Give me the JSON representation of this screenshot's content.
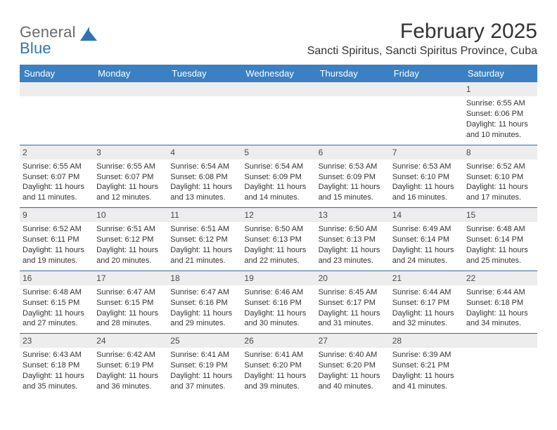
{
  "brand": {
    "line1": "General",
    "line2": "Blue"
  },
  "title": "February 2025",
  "subtitle": "Sancti Spiritus, Sancti Spiritus Province, Cuba",
  "colors": {
    "header_bg": "#3a80c2",
    "header_fg": "#ffffff",
    "row_divider": "#2b6aa8",
    "daynum_bg": "#ededed",
    "daynum_fg": "#4a4a4a",
    "text": "#333333",
    "logo_gray": "#6a6a6a",
    "logo_blue": "#2f75b5",
    "page_bg": "#ffffff"
  },
  "fonts": {
    "base": "Arial",
    "title_size": 30,
    "subtitle_size": 16,
    "dow_size": 13,
    "body_size": 11,
    "daynum_size": 12
  },
  "dow": [
    "Sunday",
    "Monday",
    "Tuesday",
    "Wednesday",
    "Thursday",
    "Friday",
    "Saturday"
  ],
  "weeks": [
    [
      {
        "day": "",
        "sunrise": "",
        "sunset": "",
        "daylight": ""
      },
      {
        "day": "",
        "sunrise": "",
        "sunset": "",
        "daylight": ""
      },
      {
        "day": "",
        "sunrise": "",
        "sunset": "",
        "daylight": ""
      },
      {
        "day": "",
        "sunrise": "",
        "sunset": "",
        "daylight": ""
      },
      {
        "day": "",
        "sunrise": "",
        "sunset": "",
        "daylight": ""
      },
      {
        "day": "",
        "sunrise": "",
        "sunset": "",
        "daylight": ""
      },
      {
        "day": "1",
        "sunrise": "Sunrise: 6:55 AM",
        "sunset": "Sunset: 6:06 PM",
        "daylight": "Daylight: 11 hours and 10 minutes."
      }
    ],
    [
      {
        "day": "2",
        "sunrise": "Sunrise: 6:55 AM",
        "sunset": "Sunset: 6:07 PM",
        "daylight": "Daylight: 11 hours and 11 minutes."
      },
      {
        "day": "3",
        "sunrise": "Sunrise: 6:55 AM",
        "sunset": "Sunset: 6:07 PM",
        "daylight": "Daylight: 11 hours and 12 minutes."
      },
      {
        "day": "4",
        "sunrise": "Sunrise: 6:54 AM",
        "sunset": "Sunset: 6:08 PM",
        "daylight": "Daylight: 11 hours and 13 minutes."
      },
      {
        "day": "5",
        "sunrise": "Sunrise: 6:54 AM",
        "sunset": "Sunset: 6:09 PM",
        "daylight": "Daylight: 11 hours and 14 minutes."
      },
      {
        "day": "6",
        "sunrise": "Sunrise: 6:53 AM",
        "sunset": "Sunset: 6:09 PM",
        "daylight": "Daylight: 11 hours and 15 minutes."
      },
      {
        "day": "7",
        "sunrise": "Sunrise: 6:53 AM",
        "sunset": "Sunset: 6:10 PM",
        "daylight": "Daylight: 11 hours and 16 minutes."
      },
      {
        "day": "8",
        "sunrise": "Sunrise: 6:52 AM",
        "sunset": "Sunset: 6:10 PM",
        "daylight": "Daylight: 11 hours and 17 minutes."
      }
    ],
    [
      {
        "day": "9",
        "sunrise": "Sunrise: 6:52 AM",
        "sunset": "Sunset: 6:11 PM",
        "daylight": "Daylight: 11 hours and 19 minutes."
      },
      {
        "day": "10",
        "sunrise": "Sunrise: 6:51 AM",
        "sunset": "Sunset: 6:12 PM",
        "daylight": "Daylight: 11 hours and 20 minutes."
      },
      {
        "day": "11",
        "sunrise": "Sunrise: 6:51 AM",
        "sunset": "Sunset: 6:12 PM",
        "daylight": "Daylight: 11 hours and 21 minutes."
      },
      {
        "day": "12",
        "sunrise": "Sunrise: 6:50 AM",
        "sunset": "Sunset: 6:13 PM",
        "daylight": "Daylight: 11 hours and 22 minutes."
      },
      {
        "day": "13",
        "sunrise": "Sunrise: 6:50 AM",
        "sunset": "Sunset: 6:13 PM",
        "daylight": "Daylight: 11 hours and 23 minutes."
      },
      {
        "day": "14",
        "sunrise": "Sunrise: 6:49 AM",
        "sunset": "Sunset: 6:14 PM",
        "daylight": "Daylight: 11 hours and 24 minutes."
      },
      {
        "day": "15",
        "sunrise": "Sunrise: 6:48 AM",
        "sunset": "Sunset: 6:14 PM",
        "daylight": "Daylight: 11 hours and 25 minutes."
      }
    ],
    [
      {
        "day": "16",
        "sunrise": "Sunrise: 6:48 AM",
        "sunset": "Sunset: 6:15 PM",
        "daylight": "Daylight: 11 hours and 27 minutes."
      },
      {
        "day": "17",
        "sunrise": "Sunrise: 6:47 AM",
        "sunset": "Sunset: 6:15 PM",
        "daylight": "Daylight: 11 hours and 28 minutes."
      },
      {
        "day": "18",
        "sunrise": "Sunrise: 6:47 AM",
        "sunset": "Sunset: 6:16 PM",
        "daylight": "Daylight: 11 hours and 29 minutes."
      },
      {
        "day": "19",
        "sunrise": "Sunrise: 6:46 AM",
        "sunset": "Sunset: 6:16 PM",
        "daylight": "Daylight: 11 hours and 30 minutes."
      },
      {
        "day": "20",
        "sunrise": "Sunrise: 6:45 AM",
        "sunset": "Sunset: 6:17 PM",
        "daylight": "Daylight: 11 hours and 31 minutes."
      },
      {
        "day": "21",
        "sunrise": "Sunrise: 6:44 AM",
        "sunset": "Sunset: 6:17 PM",
        "daylight": "Daylight: 11 hours and 32 minutes."
      },
      {
        "day": "22",
        "sunrise": "Sunrise: 6:44 AM",
        "sunset": "Sunset: 6:18 PM",
        "daylight": "Daylight: 11 hours and 34 minutes."
      }
    ],
    [
      {
        "day": "23",
        "sunrise": "Sunrise: 6:43 AM",
        "sunset": "Sunset: 6:18 PM",
        "daylight": "Daylight: 11 hours and 35 minutes."
      },
      {
        "day": "24",
        "sunrise": "Sunrise: 6:42 AM",
        "sunset": "Sunset: 6:19 PM",
        "daylight": "Daylight: 11 hours and 36 minutes."
      },
      {
        "day": "25",
        "sunrise": "Sunrise: 6:41 AM",
        "sunset": "Sunset: 6:19 PM",
        "daylight": "Daylight: 11 hours and 37 minutes."
      },
      {
        "day": "26",
        "sunrise": "Sunrise: 6:41 AM",
        "sunset": "Sunset: 6:20 PM",
        "daylight": "Daylight: 11 hours and 39 minutes."
      },
      {
        "day": "27",
        "sunrise": "Sunrise: 6:40 AM",
        "sunset": "Sunset: 6:20 PM",
        "daylight": "Daylight: 11 hours and 40 minutes."
      },
      {
        "day": "28",
        "sunrise": "Sunrise: 6:39 AM",
        "sunset": "Sunset: 6:21 PM",
        "daylight": "Daylight: 11 hours and 41 minutes."
      },
      {
        "day": "",
        "sunrise": "",
        "sunset": "",
        "daylight": ""
      }
    ]
  ]
}
